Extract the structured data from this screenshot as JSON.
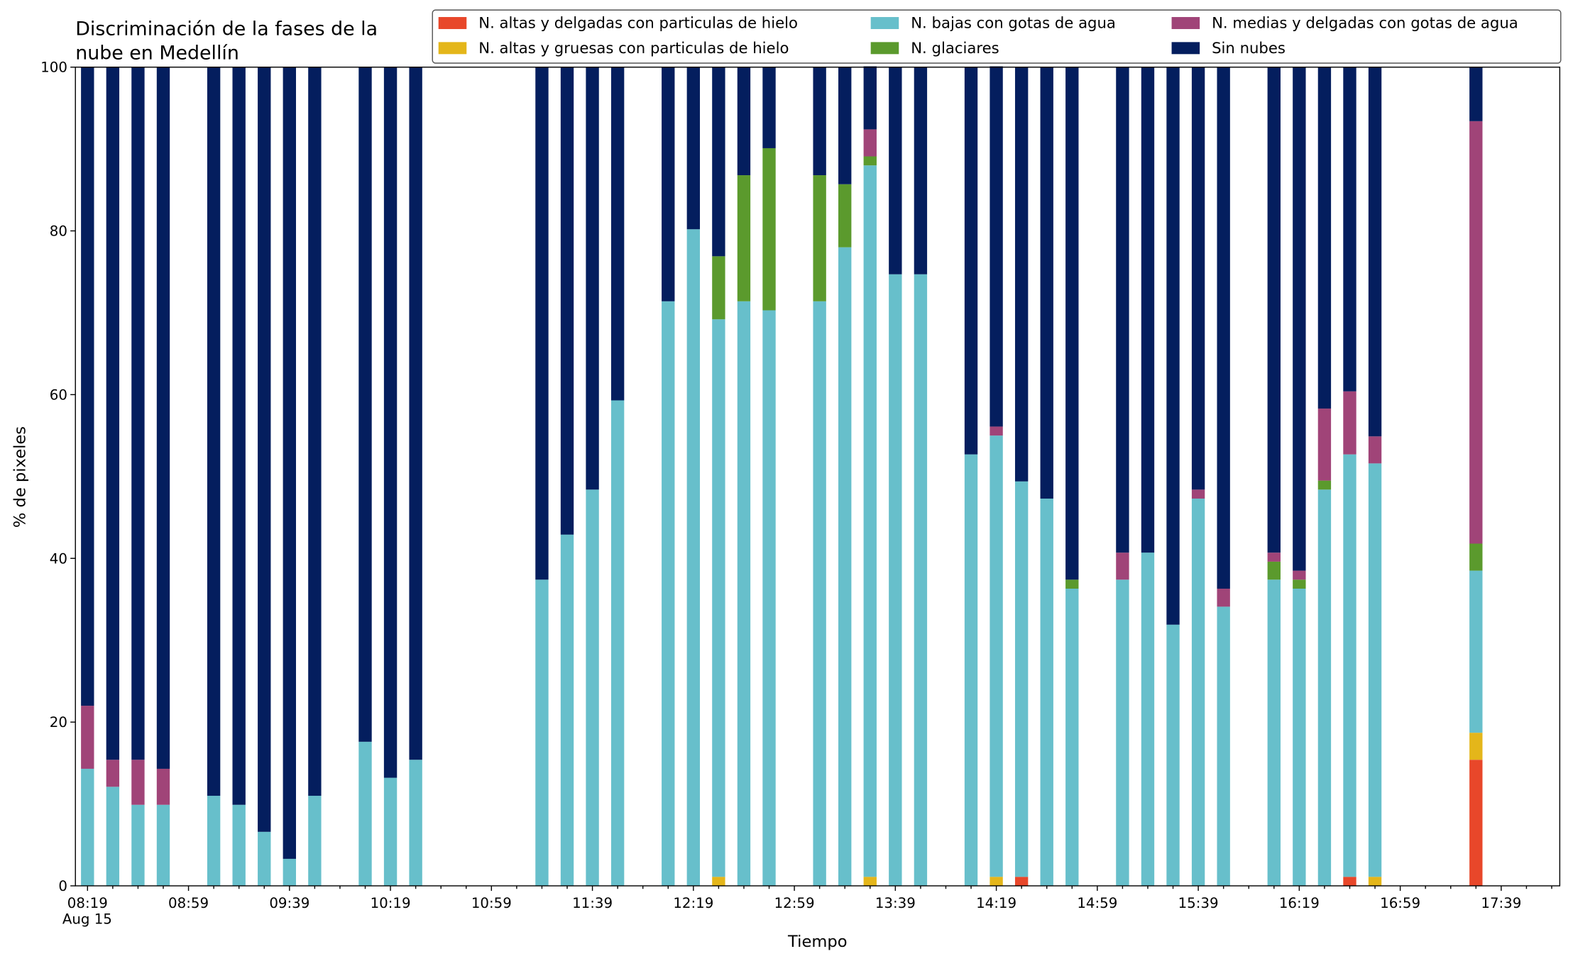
{
  "chart_data": {
    "type": "stacked_bar",
    "title": [
      "Discriminación de la fases de la",
      "nube en Medellín"
    ],
    "x_label": "Tiempo",
    "y_label": "% de pixeles",
    "x_date_label": "Aug 15",
    "categories": [
      "08:19",
      null,
      null,
      null,
      "08:59",
      null,
      null,
      null,
      "09:39",
      null,
      null,
      null,
      "10:19",
      null,
      null,
      null,
      "10:59",
      null,
      null,
      null,
      "11:39",
      null,
      null,
      null,
      "12:19",
      null,
      null,
      null,
      "12:59",
      null,
      null,
      null,
      "13:39",
      null,
      null,
      null,
      "14:19",
      null,
      null,
      null,
      "14:59",
      null,
      null,
      null,
      "15:39",
      null,
      null,
      null,
      "16:19",
      null,
      null,
      null,
      "16:59",
      null,
      null,
      null,
      "17:39",
      null,
      null
    ],
    "ylim": [
      0,
      100
    ],
    "yticks": [
      0,
      20,
      40,
      60,
      80,
      100
    ],
    "legend": "upper right",
    "series": [
      {
        "name": "N. altas y delgadas con particulas de hielo",
        "color": "#e8472a",
        "values": [
          0,
          0,
          0,
          0,
          null,
          0,
          0,
          0,
          0,
          0,
          null,
          0,
          0,
          0,
          null,
          null,
          null,
          null,
          0,
          0,
          0,
          0,
          null,
          0,
          0,
          0,
          0,
          0,
          null,
          0,
          0,
          0,
          0,
          0,
          null,
          0,
          0,
          1.1,
          0,
          0,
          null,
          0,
          0,
          0,
          0,
          0,
          null,
          0,
          0,
          0,
          1.1,
          0,
          null,
          null,
          null,
          15.4,
          null,
          null,
          null
        ]
      },
      {
        "name": "N. altas y gruesas con particulas de hielo",
        "color": "#e4b61a",
        "values": [
          0,
          0,
          0,
          0,
          null,
          0,
          0,
          0,
          0,
          0,
          null,
          0,
          0,
          0,
          null,
          null,
          null,
          null,
          0,
          0,
          0,
          0,
          null,
          0,
          0,
          1.1,
          0,
          0,
          null,
          0,
          0,
          1.1,
          0,
          0,
          null,
          0,
          1.1,
          0,
          0,
          0,
          null,
          0,
          0,
          0,
          0,
          0,
          null,
          0,
          0,
          0,
          0,
          1.1,
          null,
          null,
          null,
          3.3,
          null,
          null,
          null
        ]
      },
      {
        "name": "N. bajas con gotas de agua",
        "color": "#67bfcb",
        "values": [
          14.3,
          12.1,
          9.9,
          9.9,
          null,
          11,
          9.9,
          6.6,
          3.3,
          11,
          null,
          17.6,
          13.2,
          15.4,
          null,
          null,
          null,
          null,
          37.4,
          42.9,
          48.4,
          59.3,
          null,
          71.4,
          80.2,
          68.1,
          71.4,
          70.3,
          null,
          71.4,
          78,
          86.9,
          74.7,
          74.7,
          null,
          52.7,
          53.9,
          48.3,
          47.3,
          36.3,
          null,
          37.4,
          40.7,
          31.9,
          47.3,
          34.1,
          null,
          37.4,
          36.3,
          48.4,
          51.6,
          50.5,
          null,
          null,
          null,
          19.8,
          null,
          null,
          null
        ]
      },
      {
        "name": "N. glaciares",
        "color": "#5b9a2d",
        "values": [
          0,
          0,
          0,
          0,
          null,
          0,
          0,
          0,
          0,
          0,
          null,
          0,
          0,
          0,
          null,
          null,
          null,
          null,
          0,
          0,
          0,
          0,
          null,
          0,
          0,
          7.7,
          15.4,
          19.8,
          null,
          15.4,
          7.7,
          1.1,
          0,
          0,
          null,
          0,
          0,
          0,
          0,
          1.1,
          null,
          0,
          0,
          0,
          0,
          0,
          null,
          2.2,
          1.1,
          1.1,
          0,
          0,
          null,
          null,
          null,
          3.3,
          null,
          null,
          null
        ]
      },
      {
        "name": "N. medias y delgadas con gotas de agua",
        "color": "#a04478",
        "values": [
          7.7,
          3.3,
          5.5,
          4.4,
          null,
          0,
          0,
          0,
          0,
          0,
          null,
          0,
          0,
          0,
          null,
          null,
          null,
          null,
          0,
          0,
          0,
          0,
          null,
          0,
          0,
          0,
          0,
          0,
          null,
          0,
          0,
          3.3,
          0,
          0,
          null,
          0,
          1.1,
          0,
          0,
          0,
          null,
          3.3,
          0,
          0,
          1.1,
          2.2,
          null,
          1.1,
          1.1,
          8.8,
          7.7,
          3.3,
          null,
          null,
          null,
          51.6,
          null,
          null,
          null
        ]
      },
      {
        "name": "Sin nubes",
        "color": "#041e5e",
        "values": [
          78,
          84.6,
          84.6,
          85.7,
          null,
          89,
          90.1,
          93.4,
          96.7,
          89,
          null,
          82.4,
          86.8,
          84.6,
          null,
          null,
          null,
          null,
          62.6,
          57.1,
          51.6,
          40.7,
          null,
          28.6,
          19.8,
          23.1,
          13.2,
          9.9,
          null,
          13.2,
          14.3,
          7.7,
          25.3,
          25.3,
          null,
          47.3,
          44,
          50.6,
          52.7,
          62.6,
          null,
          59.3,
          59.3,
          68.1,
          51.6,
          63.7,
          null,
          59.3,
          61.5,
          41.7,
          39.6,
          45.1,
          null,
          null,
          null,
          6.6,
          null,
          null,
          null
        ]
      }
    ]
  }
}
